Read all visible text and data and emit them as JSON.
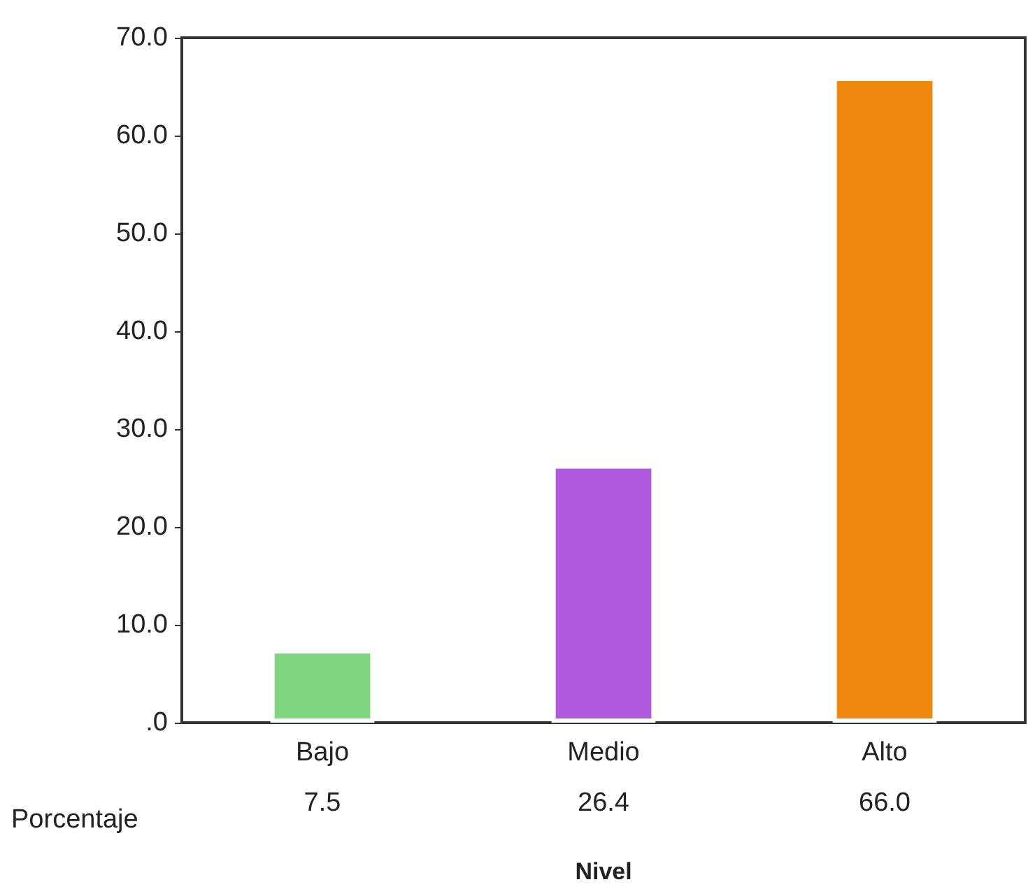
{
  "chart_data": {
    "type": "bar",
    "xlabel": "Nivel",
    "categories": [
      "Bajo",
      "Medio",
      "Alto"
    ],
    "series": [
      {
        "name": "Porcentaje",
        "colors": [
          "#7fd67f",
          "#b458e0",
          "#f0880f"
        ],
        "values": [
          7.5,
          26.4,
          66.0
        ],
        "value_labels": [
          "7.5",
          "26.4",
          "66.0"
        ]
      }
    ],
    "ylim": [
      0,
      70
    ],
    "yticks": [
      {
        "value": 0,
        "label": ".0"
      },
      {
        "value": 10,
        "label": "10.0"
      },
      {
        "value": 20,
        "label": "20.0"
      },
      {
        "value": 30,
        "label": "30.0"
      },
      {
        "value": 40,
        "label": "40.0"
      },
      {
        "value": 50,
        "label": "50.0"
      },
      {
        "value": 60,
        "label": "60.0"
      },
      {
        "value": 70,
        "label": "70.0"
      }
    ],
    "grid": false,
    "legend": false
  }
}
